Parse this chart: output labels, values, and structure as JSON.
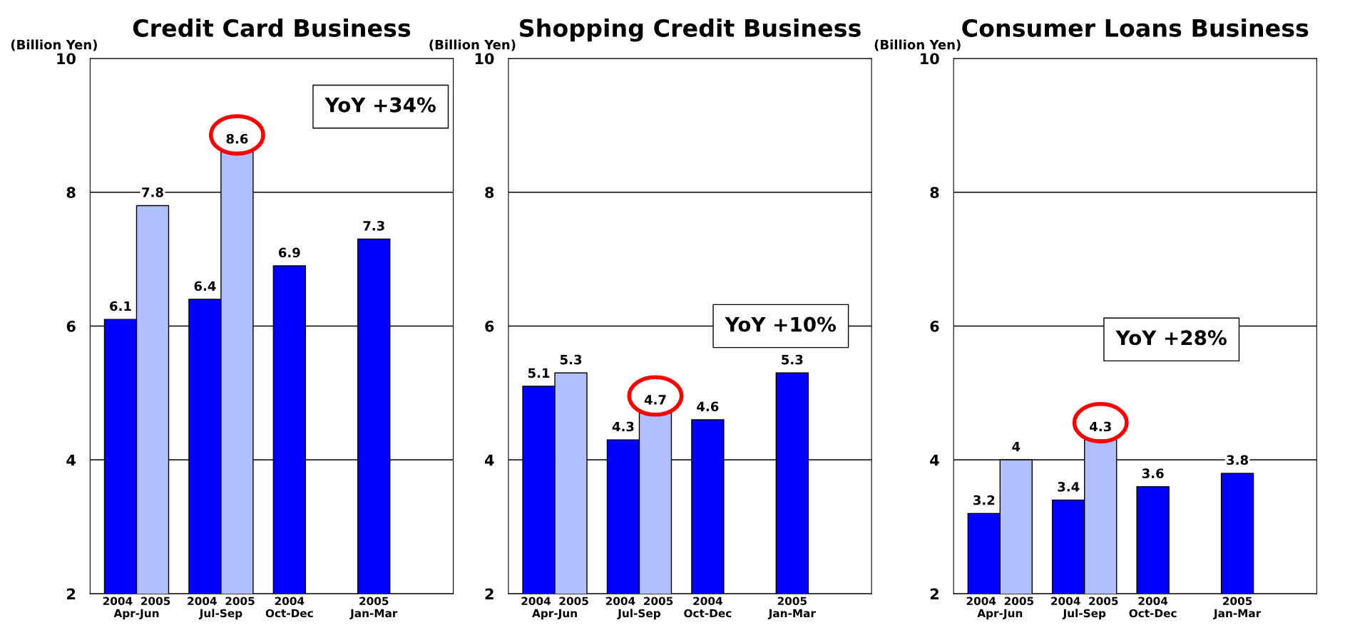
{
  "chart_data": [
    {
      "type": "bar",
      "title": "Credit Card Business",
      "ylabel": "(Billion Yen)",
      "categories": [
        "2004  2005\nApr-Jun",
        "2004  2005\nJul-Sep",
        "2004\nOct-Dec",
        "2005\nJan-Mar"
      ],
      "series": [
        {
          "color": "#0000ff",
          "values": [
            6.1,
            6.4,
            6.9,
            7.3
          ]
        },
        {
          "color": "#b0bfff",
          "values": [
            7.8,
            8.6,
            null,
            null
          ]
        }
      ],
      "ylim": [
        2,
        10
      ],
      "yticks": [
        2,
        4,
        6,
        8,
        10
      ],
      "grid": "y",
      "data_labels": true,
      "legend": false,
      "annotations": [
        "YoY +34%"
      ]
    },
    {
      "type": "bar",
      "title": "Shopping Credit Business",
      "ylabel": "(Billion Yen)",
      "categories": [
        "2004  2005\nApr-Jun",
        "2004  2005\nJul-Sep",
        "2004\nOct-Dec",
        "2005\nJan-Mar"
      ],
      "series": [
        {
          "color": "#0000ff",
          "values": [
            5.1,
            4.3,
            4.6,
            5.3
          ]
        },
        {
          "color": "#b0bfff",
          "values": [
            5.3,
            4.7,
            null,
            null
          ]
        }
      ],
      "ylim": [
        2,
        10
      ],
      "yticks": [
        2,
        4,
        6,
        8,
        10
      ],
      "grid": "y",
      "data_labels": true,
      "legend": false,
      "annotations": [
        "YoY +10%"
      ]
    },
    {
      "type": "bar",
      "title": "Consumer Loans Business",
      "ylabel": "(Billion Yen)",
      "categories": [
        "2004  2005\nApr-Jun",
        "2004  2005\nJul-Sep",
        "2004\nOct-Dec",
        "2005\nJan-Mar"
      ],
      "series": [
        {
          "color": "#0000ff",
          "values": [
            3.2,
            3.4,
            3.6,
            3.8
          ]
        },
        {
          "color": "#b0bfff",
          "values": [
            4,
            4.3,
            null,
            null
          ]
        }
      ],
      "ylim": [
        2,
        10
      ],
      "yticks": [
        2,
        4,
        6,
        8,
        10
      ],
      "grid": "y",
      "data_labels": true,
      "legend": false,
      "annotations": [
        "YoY +28%"
      ]
    }
  ]
}
